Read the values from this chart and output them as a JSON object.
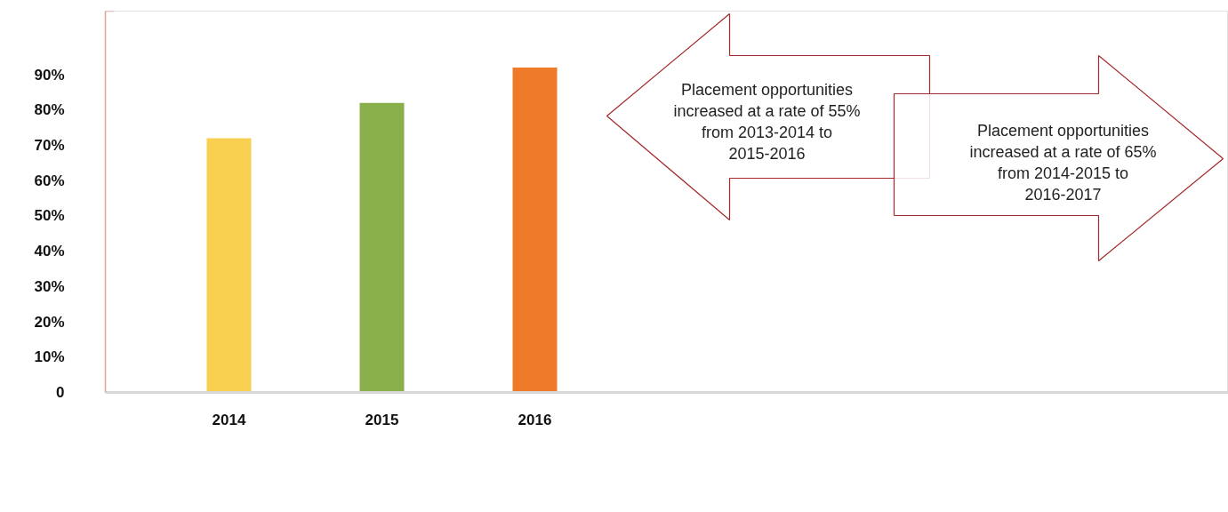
{
  "chart_data": {
    "type": "bar",
    "categories": [
      "2014",
      "2015",
      "2016"
    ],
    "values": [
      72,
      82,
      92
    ],
    "colors": [
      "#f8cf4e",
      "#8ab04c",
      "#ef7a2a"
    ],
    "ylim": [
      0,
      108
    ],
    "yticks": [
      0,
      {
        "value": 10,
        "label": "10%"
      },
      {
        "value": 20,
        "label": "20%"
      },
      {
        "value": 30,
        "label": "30%"
      },
      {
        "value": 40,
        "label": "40%"
      },
      {
        "value": 50,
        "label": "50%"
      },
      {
        "value": 60,
        "label": "60%"
      },
      {
        "value": 70,
        "label": "70%"
      },
      {
        "value": 80,
        "label": "80%"
      },
      {
        "value": 90,
        "label": "90%"
      }
    ],
    "grid": false,
    "annotations": [
      "Placement opportunities increased at a rate of 55% from 2013-2014 to 2015-2016",
      "Placement opportunities increased at a rate of 65% from 2014-2015 to 2016-2017"
    ]
  }
}
